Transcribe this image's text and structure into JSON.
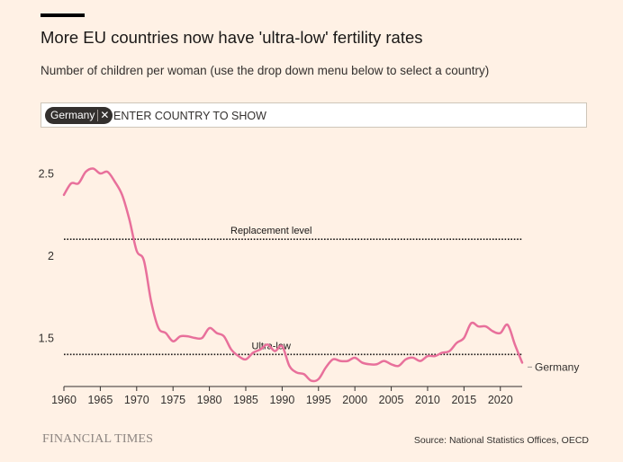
{
  "header": {
    "title": "More EU countries now have 'ultra-low' fertility rates",
    "subtitle": "Number of children per woman (use the drop down menu below to select a country)"
  },
  "selector": {
    "chip_label": "Germany",
    "remove_glyph": "✕",
    "placeholder": "ENTER COUNTRY TO SHOW"
  },
  "footer": {
    "brand": "FINANCIAL TIMES",
    "source": "Source: National Statistics Offices, OECD"
  },
  "colors": {
    "background": "#fff1e5",
    "series": "#e8709b",
    "reference_line": "#1a1817",
    "axis_text": "#33302e"
  },
  "chart_data": {
    "type": "line",
    "title": "",
    "xlabel": "",
    "ylabel": "",
    "xlim": [
      1960,
      2023
    ],
    "ylim": [
      1.2,
      2.6
    ],
    "x_ticks": [
      1960,
      1965,
      1970,
      1975,
      1980,
      1985,
      1990,
      1995,
      2000,
      2005,
      2010,
      2015,
      2020
    ],
    "y_ticks": [
      {
        "value": 1.5,
        "label": "1.5"
      },
      {
        "value": 2,
        "label": "2"
      },
      {
        "value": 2.5,
        "label": "2.5"
      }
    ],
    "grid": false,
    "reference_lines": [
      {
        "value": 2.1,
        "label": "Replacement level",
        "label_x": 1988.5
      },
      {
        "value": 1.4,
        "label": "Ultra-low",
        "label_x": 1988.5
      }
    ],
    "series": [
      {
        "name": "Germany",
        "x": [
          1960,
          1961,
          1962,
          1963,
          1964,
          1965,
          1966,
          1967,
          1968,
          1969,
          1970,
          1971,
          1972,
          1973,
          1974,
          1975,
          1976,
          1977,
          1978,
          1979,
          1980,
          1981,
          1982,
          1983,
          1984,
          1985,
          1986,
          1987,
          1988,
          1989,
          1990,
          1991,
          1992,
          1993,
          1994,
          1995,
          1996,
          1997,
          1998,
          1999,
          2000,
          2001,
          2002,
          2003,
          2004,
          2005,
          2006,
          2007,
          2008,
          2009,
          2010,
          2011,
          2012,
          2013,
          2014,
          2015,
          2016,
          2017,
          2018,
          2019,
          2020,
          2021,
          2022,
          2023
        ],
        "values": [
          2.37,
          2.44,
          2.44,
          2.51,
          2.53,
          2.5,
          2.51,
          2.45,
          2.37,
          2.22,
          2.03,
          1.97,
          1.72,
          1.56,
          1.53,
          1.48,
          1.51,
          1.51,
          1.5,
          1.5,
          1.56,
          1.53,
          1.51,
          1.43,
          1.39,
          1.37,
          1.41,
          1.43,
          1.46,
          1.42,
          1.45,
          1.33,
          1.29,
          1.28,
          1.24,
          1.25,
          1.32,
          1.37,
          1.36,
          1.36,
          1.38,
          1.35,
          1.34,
          1.34,
          1.36,
          1.34,
          1.33,
          1.37,
          1.38,
          1.36,
          1.39,
          1.39,
          1.41,
          1.42,
          1.47,
          1.5,
          1.59,
          1.57,
          1.57,
          1.54,
          1.53,
          1.58,
          1.46,
          1.35
        ]
      }
    ]
  }
}
